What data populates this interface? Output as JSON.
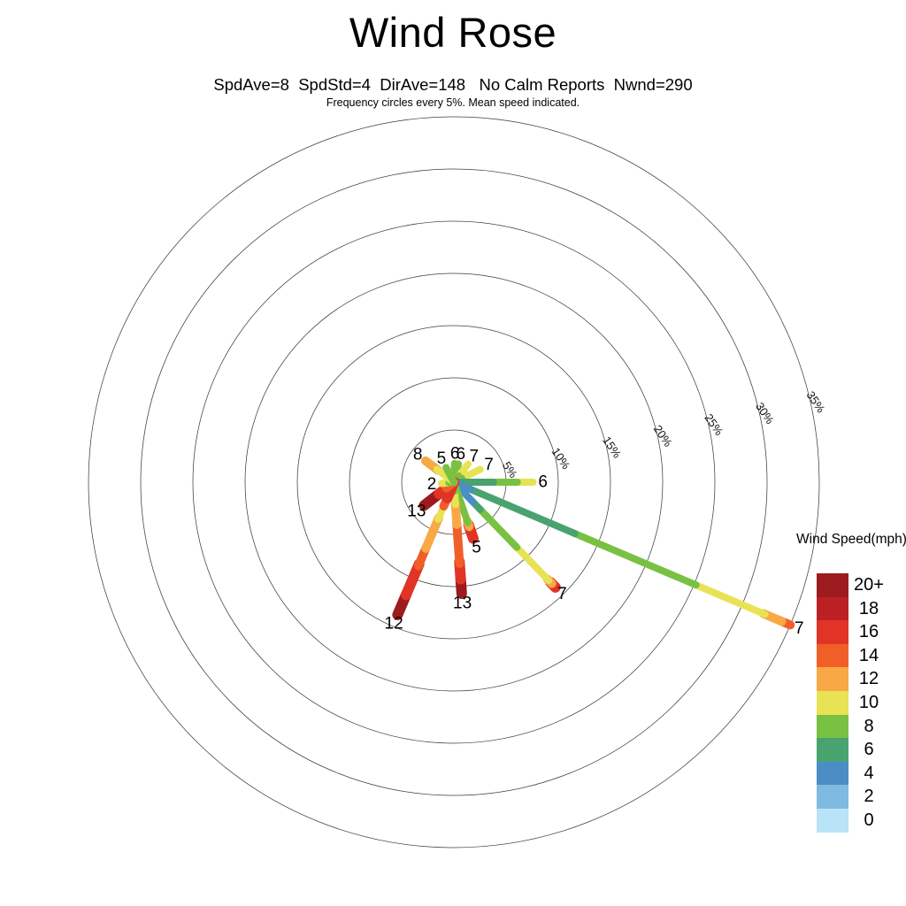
{
  "chart_data": {
    "type": "windrose",
    "title": "Wind Rose",
    "subtitle": "SpdAve=8  SpdStd=4  DirAve=148   No Calm Reports  Nwnd=290",
    "note": "Frequency circles every 5%. Mean speed indicated.",
    "stats": {
      "SpdAve": 8,
      "SpdStd": 4,
      "DirAve": 148,
      "calm": "No Calm Reports",
      "Nwnd": 290
    },
    "rings_pct": [
      5,
      10,
      15,
      20,
      25,
      30,
      35
    ],
    "ring_label_suffix": "%",
    "ring_label_angle_deg": 77.5,
    "speed_unit": "mph",
    "speed_colors": {
      "0": "#b9e3f7",
      "2": "#7fbbe0",
      "4": "#4a8ec5",
      "6": "#49a36f",
      "8": "#79c143",
      "10": "#e8e354",
      "12": "#f8a844",
      "14": "#f15f29",
      "16": "#e13426",
      "18": "#bc2025",
      "20+": "#9b1b1e"
    },
    "legend": {
      "title": "Wind Speed(mph)",
      "order": [
        "20+",
        "18",
        "16",
        "14",
        "12",
        "10",
        "8",
        "6",
        "4",
        "2",
        "0"
      ]
    },
    "spokes": [
      {
        "dir": "N",
        "angle_deg": 2,
        "length_pct": 1.8,
        "mean_speed": "6",
        "segments": [
          [
            "8",
            0,
            1
          ]
        ]
      },
      {
        "dir": "NNE",
        "angle_deg": 14,
        "length_pct": 1.8,
        "mean_speed": "6",
        "segments": [
          [
            "8",
            0,
            1
          ]
        ]
      },
      {
        "dir": "NE",
        "angle_deg": 38,
        "length_pct": 2.2,
        "mean_speed": "7",
        "segments": [
          [
            "8",
            0,
            0.35
          ],
          [
            "10",
            0.35,
            1
          ]
        ]
      },
      {
        "dir": "ENE",
        "angle_deg": 64,
        "length_pct": 2.8,
        "mean_speed": "7",
        "segments": [
          [
            "8",
            0,
            0.3
          ],
          [
            "10",
            0.3,
            1
          ]
        ]
      },
      {
        "dir": "E",
        "angle_deg": 90,
        "length_pct": 7.6,
        "mean_speed": "6",
        "segments": [
          [
            "6",
            0,
            0.5
          ],
          [
            "8",
            0.5,
            0.8
          ],
          [
            "10",
            0.8,
            1
          ]
        ]
      },
      {
        "dir": "ESE",
        "angle_deg": 113,
        "length_pct": 35,
        "mean_speed": "7",
        "segments": [
          [
            "4",
            0,
            0.05
          ],
          [
            "6",
            0.05,
            0.36
          ],
          [
            "8",
            0.36,
            0.72
          ],
          [
            "10",
            0.72,
            0.925
          ],
          [
            "12",
            0.925,
            0.975
          ],
          [
            "14",
            0.975,
            1
          ]
        ]
      },
      {
        "dir": "SE",
        "angle_deg": 136,
        "length_pct": 14,
        "mean_speed": "7",
        "segments": [
          [
            "4",
            0,
            0.19
          ],
          [
            "6",
            0.19,
            0.26
          ],
          [
            "8",
            0.26,
            0.62
          ],
          [
            "10",
            0.62,
            0.935
          ],
          [
            "12",
            0.935,
            0.965
          ],
          [
            "16",
            0.965,
            1
          ]
        ]
      },
      {
        "dir": "SSE",
        "angle_deg": 161,
        "length_pct": 5.7,
        "mean_speed": "5",
        "segments": [
          [
            "8",
            0,
            0.72
          ],
          [
            "12",
            0.72,
            0.79
          ],
          [
            "16",
            0.79,
            1
          ]
        ]
      },
      {
        "dir": "S",
        "angle_deg": 176,
        "length_pct": 10.7,
        "mean_speed": "13",
        "segments": [
          [
            "8",
            0,
            0.08
          ],
          [
            "10",
            0.08,
            0.2
          ],
          [
            "12",
            0.2,
            0.38
          ],
          [
            "14",
            0.38,
            0.73
          ],
          [
            "16",
            0.73,
            0.87
          ],
          [
            "20+",
            0.87,
            1
          ]
        ]
      },
      {
        "dir": "SSW",
        "angle_deg": 203,
        "length_pct": 13.8,
        "mean_speed": "12",
        "segments": [
          [
            "16",
            0,
            0.12
          ],
          [
            "14",
            0.12,
            0.18
          ],
          [
            "10",
            0.18,
            0.28
          ],
          [
            "12",
            0.28,
            0.5
          ],
          [
            "14",
            0.5,
            0.63
          ],
          [
            "16",
            0.63,
            0.85
          ],
          [
            "20+",
            0.85,
            1
          ]
        ]
      },
      {
        "dir": "SW",
        "angle_deg": 232,
        "length_pct": 3.6,
        "mean_speed": "13",
        "segments": [
          [
            "14",
            0,
            0.25
          ],
          [
            "16",
            0.25,
            0.5
          ],
          [
            "20+",
            0.5,
            1
          ]
        ]
      },
      {
        "dir": "W",
        "angle_deg": 264,
        "length_pct": 1.2,
        "mean_speed": "2",
        "segments": [
          [
            "8",
            0,
            0.4
          ],
          [
            "10",
            0.4,
            1
          ]
        ]
      },
      {
        "dir": "NW",
        "angle_deg": 307,
        "length_pct": 3.4,
        "mean_speed": "8",
        "segments": [
          [
            "10",
            0,
            0.6
          ],
          [
            "12",
            0.6,
            1
          ]
        ]
      },
      {
        "dir": "NNW",
        "angle_deg": 332,
        "length_pct": 1.6,
        "mean_speed": "5",
        "segments": [
          [
            "8",
            0,
            1
          ]
        ]
      }
    ]
  }
}
